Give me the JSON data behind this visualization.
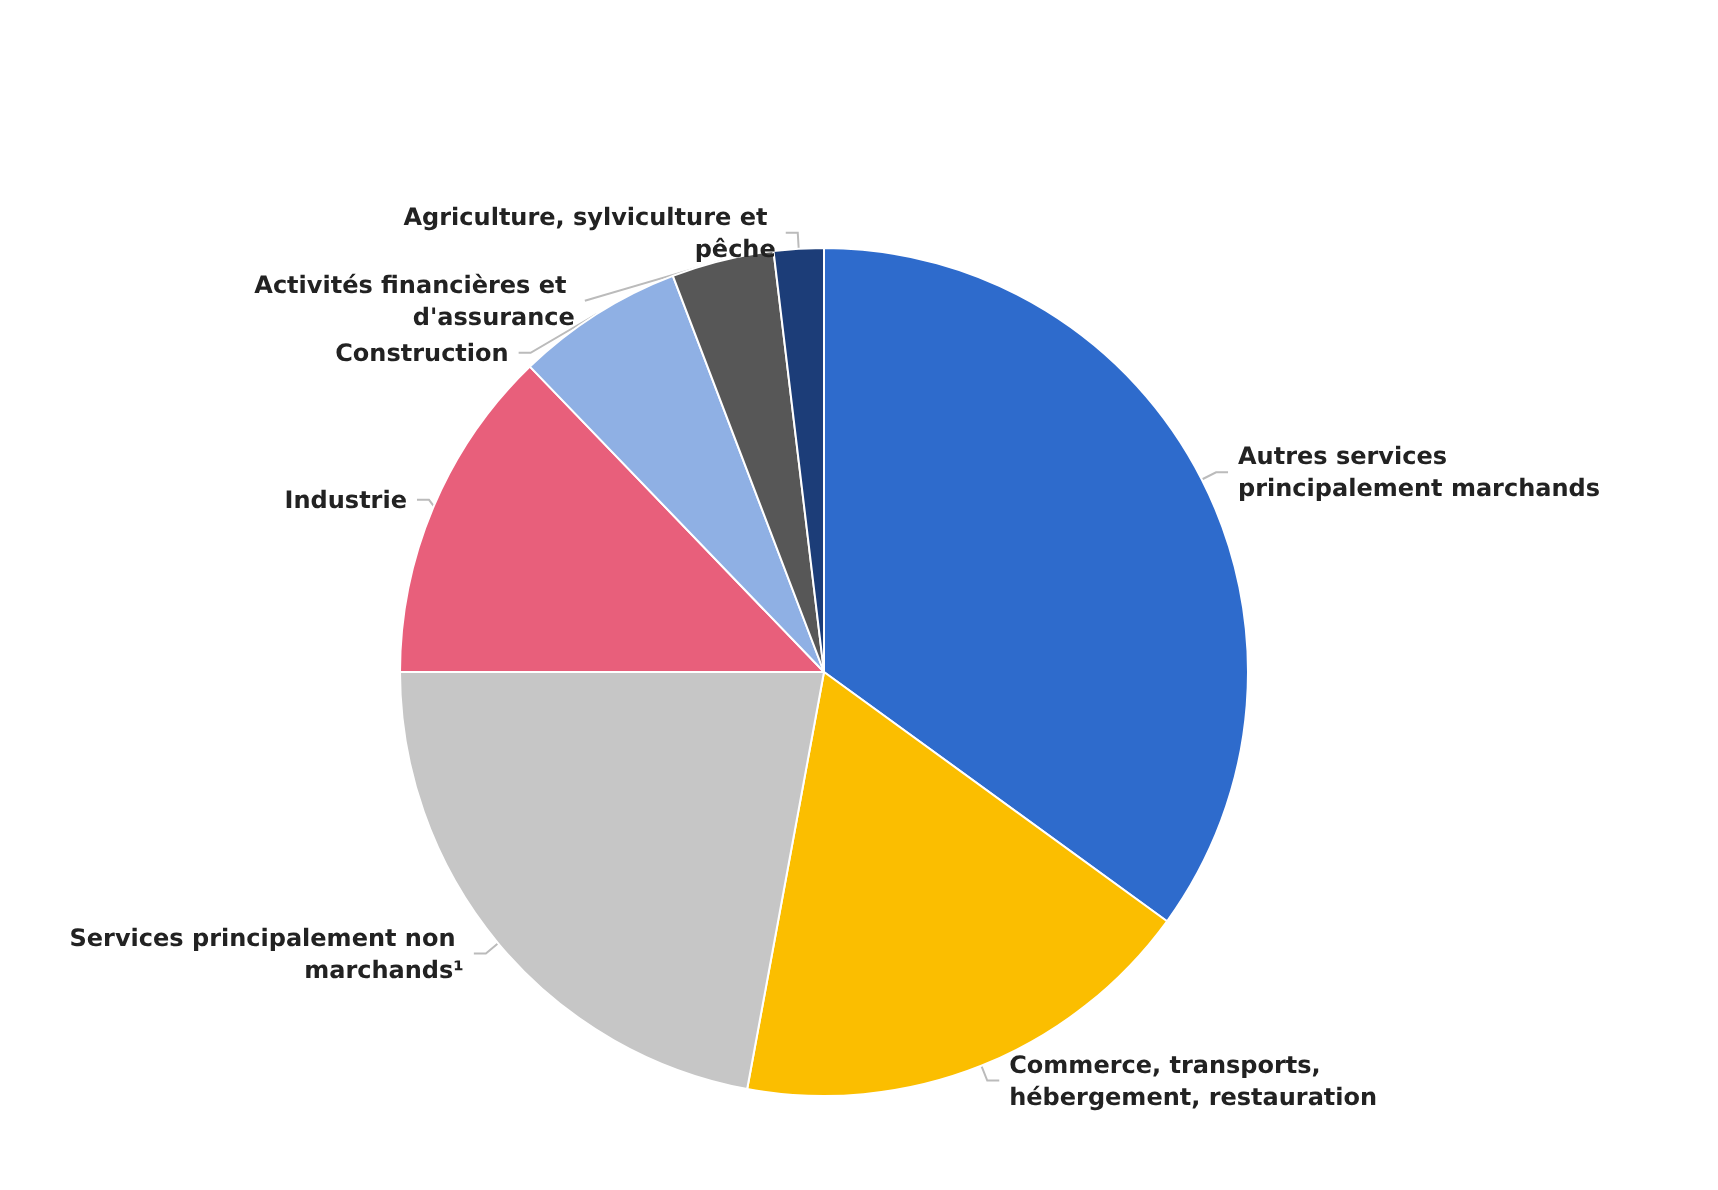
{
  "chart_data": {
    "type": "pie",
    "categories": [
      "Autres services principalement marchands",
      "Commerce, transports, hébergement, restauration",
      "Services principalement non marchands¹",
      "Industrie",
      "Construction",
      "Activités financières et d'assurance",
      "Agriculture, sylviculture et pêche"
    ],
    "values": [
      35,
      17.9,
      22.1,
      12.8,
      6.4,
      3.9,
      1.9
    ],
    "colors": [
      "#2e6bcc",
      "#fbbe00",
      "#c6c6c6",
      "#e85f7b",
      "#8fb0e4",
      "#575757",
      "#1c3d78"
    ]
  }
}
